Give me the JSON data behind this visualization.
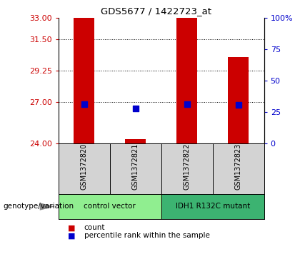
{
  "title": "GDS5677 / 1422723_at",
  "samples": [
    "GSM1372820",
    "GSM1372821",
    "GSM1372822",
    "GSM1372823"
  ],
  "groups": [
    {
      "name": "control vector",
      "samples": [
        0,
        1
      ],
      "color": "#90EE90"
    },
    {
      "name": "IDH1 R132C mutant",
      "samples": [
        2,
        3
      ],
      "color": "#3CB371"
    }
  ],
  "ylim_left": [
    24,
    33
  ],
  "ylim_right": [
    0,
    100
  ],
  "yticks_left": [
    24,
    27,
    29.25,
    31.5,
    33
  ],
  "yticks_right": [
    0,
    25,
    50,
    75,
    100
  ],
  "ytick_labels_right": [
    "0",
    "25",
    "50",
    "75",
    "100%"
  ],
  "hlines": [
    27,
    29.25,
    31.5
  ],
  "bar_values": [
    33.0,
    24.35,
    33.0,
    30.2
  ],
  "bar_base": 24,
  "bar_color": "#CC0000",
  "bar_width": 0.4,
  "percentile_values": [
    26.85,
    26.55,
    26.85,
    26.8
  ],
  "percentile_color": "#0000CC",
  "percentile_size": 35,
  "left_tick_color": "#CC0000",
  "right_tick_color": "#0000CC",
  "legend_items": [
    {
      "label": "count",
      "color": "#CC0000"
    },
    {
      "label": "percentile rank within the sample",
      "color": "#0000CC"
    }
  ],
  "genotype_label": "genotype/variation"
}
